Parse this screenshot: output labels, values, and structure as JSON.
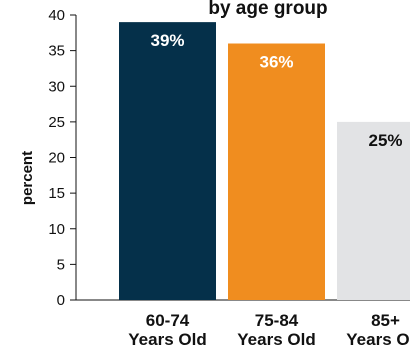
{
  "chart_data": {
    "type": "bar",
    "title": "by age group",
    "ylabel": "percent",
    "ylim": [
      0,
      40
    ],
    "yticks": [
      "0",
      "5",
      "10",
      "15",
      "20",
      "25",
      "30",
      "35",
      "40"
    ],
    "categories": [
      [
        "60-74",
        "Years Old"
      ],
      [
        "75-84",
        "Years Old"
      ],
      [
        "85+",
        "Years Old"
      ]
    ],
    "values": [
      39,
      36,
      25
    ],
    "data_labels": [
      "39%",
      "36%",
      "25%"
    ],
    "colors": [
      "#05304a",
      "#f08d1f",
      "#e2e3e5"
    ],
    "label_colors": [
      "#ffffff",
      "#ffffff",
      "#111111"
    ],
    "grid": false,
    "legend": "none"
  }
}
